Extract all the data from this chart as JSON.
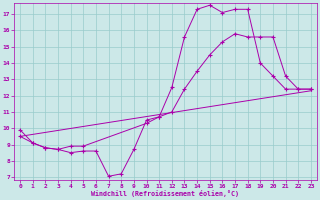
{
  "xlabel": "Windchill (Refroidissement éolien,°C)",
  "bg_color": "#cce8e8",
  "line_color": "#aa00aa",
  "grid_color": "#99cccc",
  "xlim": [
    -0.5,
    23.5
  ],
  "ylim": [
    6.8,
    17.7
  ],
  "xticks": [
    0,
    1,
    2,
    3,
    4,
    5,
    6,
    7,
    8,
    9,
    10,
    11,
    12,
    13,
    14,
    15,
    16,
    17,
    18,
    19,
    20,
    21,
    22,
    23
  ],
  "yticks": [
    7,
    8,
    9,
    10,
    11,
    12,
    13,
    14,
    15,
    16,
    17
  ],
  "line1_x": [
    0,
    1,
    2,
    3,
    4,
    5,
    6,
    7,
    8,
    9,
    10,
    11,
    12,
    13,
    14,
    15,
    16,
    17,
    18,
    19,
    20,
    21,
    22,
    23
  ],
  "line1_y": [
    9.9,
    9.1,
    8.8,
    8.7,
    8.5,
    8.6,
    8.6,
    7.05,
    7.2,
    8.7,
    10.5,
    10.7,
    12.5,
    15.6,
    17.3,
    17.55,
    17.1,
    17.3,
    17.3,
    14.0,
    13.2,
    12.4,
    12.4,
    12.4
  ],
  "line2_x": [
    0,
    1,
    2,
    3,
    4,
    5,
    10,
    11,
    12,
    13,
    14,
    15,
    16,
    17,
    18,
    19,
    20,
    21,
    22,
    23
  ],
  "line2_y": [
    9.5,
    9.1,
    8.8,
    8.7,
    8.9,
    8.9,
    10.3,
    10.7,
    11.0,
    12.4,
    13.5,
    14.5,
    15.3,
    15.8,
    15.6,
    15.6,
    15.6,
    13.2,
    12.4,
    12.4
  ],
  "line3_x": [
    0,
    23
  ],
  "line3_y": [
    9.5,
    12.3
  ]
}
